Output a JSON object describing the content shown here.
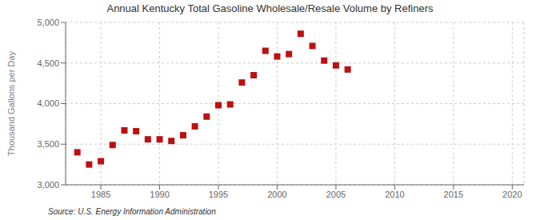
{
  "chart_data": {
    "type": "scatter",
    "title": "Annual Kentucky Total Gasoline Wholesale/Resale Volume by Refiners",
    "ylabel": "Thousand Gallons per Day",
    "source": "Source: U.S. Energy Information Administration",
    "x": [
      1983,
      1984,
      1985,
      1986,
      1987,
      1988,
      1989,
      1990,
      1991,
      1992,
      1993,
      1994,
      1995,
      1996,
      1997,
      1998,
      1999,
      2000,
      2001,
      2002,
      2003,
      2004,
      2005,
      2006
    ],
    "values": [
      3400,
      3250,
      3290,
      3490,
      3670,
      3660,
      3560,
      3560,
      3540,
      3610,
      3720,
      3840,
      3980,
      3990,
      4260,
      4350,
      4650,
      4580,
      4610,
      4860,
      4710,
      4530,
      4470,
      4420
    ],
    "color": "#bb1111",
    "marker": "square",
    "xlim": [
      1982,
      2021
    ],
    "xticks": [
      1985,
      1990,
      1995,
      2000,
      2005,
      2010,
      2015,
      2020
    ],
    "ylim": [
      3000,
      5000
    ],
    "yticks": [
      {
        "value": 3000,
        "label": "3,000"
      },
      {
        "value": 3500,
        "label": "3,500"
      },
      {
        "value": 4000,
        "label": "4,000"
      },
      {
        "value": 4500,
        "label": "4,500"
      },
      {
        "value": 5000,
        "label": "5,000"
      }
    ],
    "grid": true
  }
}
